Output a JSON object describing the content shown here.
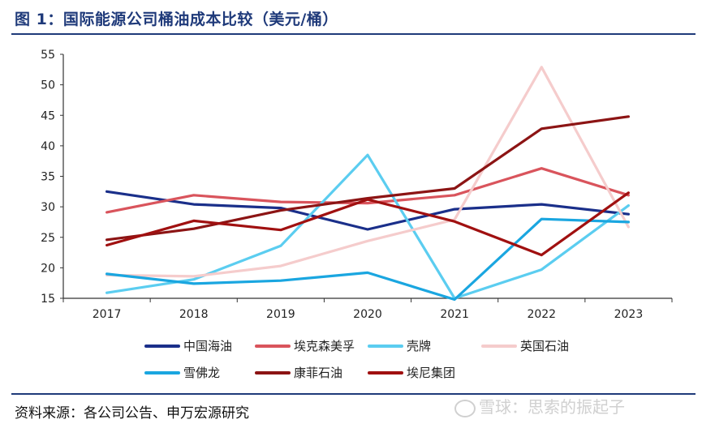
{
  "figure": {
    "title": "图 1：国际能源公司桶油成本比较（美元/桶）",
    "source": "资料来源：各公司公告、申万宏源研究",
    "watermark": "雪球：思索的振起子"
  },
  "chart_data": {
    "type": "line",
    "title": "",
    "xlabel": "",
    "ylabel": "",
    "x": [
      "2017",
      "2018",
      "2019",
      "2020",
      "2021",
      "2022",
      "2023"
    ],
    "ylim": [
      15,
      55
    ],
    "yticks": [
      15,
      20,
      25,
      30,
      35,
      40,
      45,
      50,
      55
    ],
    "grid": false,
    "legend_position": "bottom",
    "series": [
      {
        "name": "中国海油",
        "color": "#1a2f8a",
        "values": [
          32.5,
          30.4,
          29.8,
          26.3,
          29.6,
          30.4,
          28.8
        ]
      },
      {
        "name": "埃克森美孚",
        "color": "#d9545c",
        "values": [
          29.1,
          31.9,
          30.8,
          30.6,
          31.9,
          36.3,
          31.9
        ]
      },
      {
        "name": "壳牌",
        "color": "#5bcdf0",
        "values": [
          15.9,
          18.1,
          23.6,
          38.5,
          15.0,
          19.7,
          30.2
        ]
      },
      {
        "name": "英国石油",
        "color": "#f5cccc",
        "values": [
          18.8,
          18.6,
          20.3,
          24.4,
          27.9,
          52.9,
          26.7
        ]
      },
      {
        "name": "雪佛龙",
        "color": "#1aa6e0",
        "values": [
          19.0,
          17.4,
          17.9,
          19.2,
          14.8,
          28.0,
          27.5
        ]
      },
      {
        "name": "康菲石油",
        "color": "#8c1414",
        "values": [
          24.6,
          26.4,
          29.4,
          31.4,
          33.0,
          42.8,
          44.8
        ]
      },
      {
        "name": "埃尼集团",
        "color": "#a01010",
        "values": [
          23.7,
          27.7,
          26.2,
          31.2,
          27.6,
          22.1,
          32.3
        ]
      }
    ]
  }
}
